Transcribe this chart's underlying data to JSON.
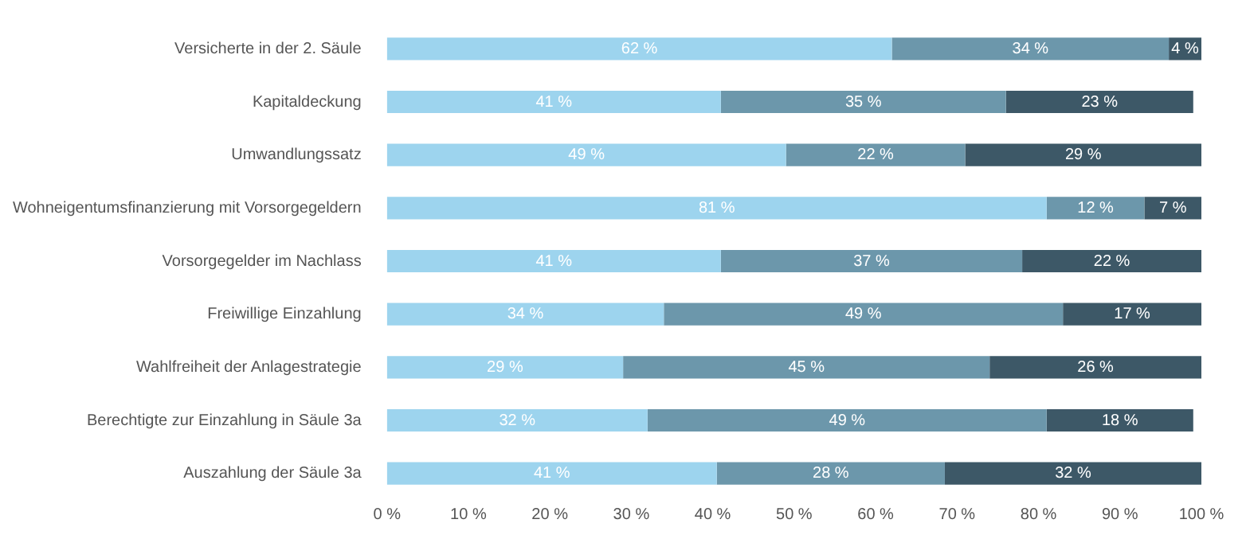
{
  "chart_data": {
    "type": "bar",
    "orientation": "horizontal",
    "stacked": true,
    "categories": [
      "Versicherte in der 2. Säule",
      "Kapitaldeckung",
      "Umwandlungssatz",
      "Wohneigentumsfinanzierung mit Vorsorgegeldern",
      "Vorsorgegelder im Nachlass",
      "Freiwillige Einzahlung",
      "Wahlfreiheit der Anlagestrategie",
      "Berechtigte zur Einzahlung in Säule 3a",
      "Auszahlung der Säule 3a"
    ],
    "series": [
      {
        "color": "#9dd4ee",
        "values": [
          62,
          41,
          49,
          81,
          41,
          34,
          29,
          32,
          40.5
        ],
        "value_labels": [
          "62 %",
          "41 %",
          "49 %",
          "81 %",
          "41 %",
          "34 %",
          "29 %",
          "32 %",
          "41 %"
        ]
      },
      {
        "color": "#6c97ab",
        "values": [
          34,
          35,
          22,
          12,
          37,
          49,
          45,
          49,
          28
        ],
        "value_labels": [
          "34 %",
          "35 %",
          "22 %",
          "12 %",
          "37 %",
          "49 %",
          "45 %",
          "49 %",
          "28 %"
        ]
      },
      {
        "color": "#3d5867",
        "values": [
          4,
          23,
          29,
          7,
          22,
          17,
          26,
          18,
          31.5
        ],
        "value_labels": [
          "4 %",
          "23 %",
          "29 %",
          "7 %",
          "22 %",
          "17 %",
          "26 %",
          "18 %",
          "32 %"
        ]
      }
    ],
    "xlim": [
      0,
      100
    ],
    "xticks": [
      {
        "value": 0,
        "label": "0 %"
      },
      {
        "value": 10,
        "label": "10 %"
      },
      {
        "value": 20,
        "label": "20 %"
      },
      {
        "value": 30,
        "label": "30 %"
      },
      {
        "value": 40,
        "label": "40 %"
      },
      {
        "value": 50,
        "label": "50 %"
      },
      {
        "value": 60,
        "label": "60 %"
      },
      {
        "value": 70,
        "label": "70 %"
      },
      {
        "value": 80,
        "label": "80 %"
      },
      {
        "value": 90,
        "label": "90 %"
      },
      {
        "value": 100,
        "label": "100 %"
      }
    ],
    "legend": false
  }
}
